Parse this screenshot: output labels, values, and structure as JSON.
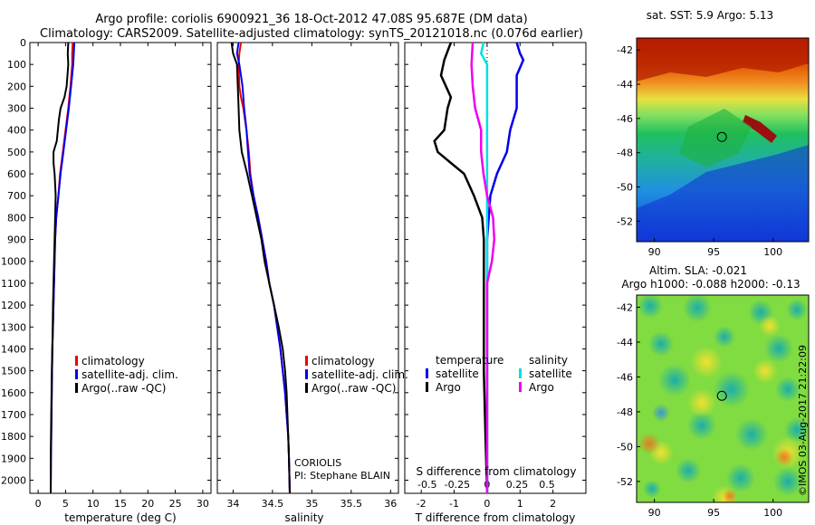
{
  "header": {
    "title_line1": "Argo profile: coriolis 6900921_36 18-Oct-2012 47.08S 95.687E (DM data)",
    "title_line2": "Climatology: CARS2009. Satellite-adjusted climatology: synTS_20121018.nc (0.076d earlier)"
  },
  "side_label": "©IMOS 03-Aug-2017 21:22:09",
  "colors": {
    "clim": "#ee0000",
    "sat": "#0000ee",
    "argo": "#000000",
    "sal_sat": "#00e0e0",
    "sal_argo": "#ee00ee"
  },
  "chart_data": [
    {
      "type": "line",
      "name": "temperature-profile",
      "xlabel": "temperature (deg C)",
      "xlim": [
        -1.5,
        31.5
      ],
      "ylim": [
        2060,
        0
      ],
      "xticks": [
        0,
        5,
        10,
        15,
        20,
        25,
        30
      ],
      "yticks": [
        0,
        100,
        200,
        300,
        400,
        500,
        600,
        700,
        800,
        900,
        1000,
        1100,
        1200,
        1300,
        1400,
        1500,
        1600,
        1700,
        1800,
        1900,
        2000
      ],
      "legend": [
        "climatology",
        "satellite-adj. clim.",
        "Argo(..raw -QC)"
      ],
      "series": [
        {
          "name": "climatology",
          "points": [
            [
              6.3,
              0
            ],
            [
              6.2,
              50
            ],
            [
              6.2,
              100
            ],
            [
              5.9,
              200
            ],
            [
              5.5,
              300
            ],
            [
              5.0,
              400
            ],
            [
              4.5,
              500
            ],
            [
              4.0,
              600
            ],
            [
              3.7,
              700
            ],
            [
              3.3,
              800
            ],
            [
              3.1,
              900
            ],
            [
              3.0,
              1000
            ],
            [
              2.9,
              1100
            ],
            [
              2.8,
              1200
            ],
            [
              2.7,
              1300
            ],
            [
              2.6,
              1400
            ],
            [
              2.55,
              1500
            ],
            [
              2.5,
              1600
            ],
            [
              2.45,
              1700
            ],
            [
              2.4,
              1800
            ],
            [
              2.35,
              1900
            ],
            [
              2.3,
              2060
            ]
          ]
        },
        {
          "name": "satellite-adj. clim.",
          "points": [
            [
              6.6,
              0
            ],
            [
              6.5,
              50
            ],
            [
              6.4,
              100
            ],
            [
              6.0,
              200
            ],
            [
              5.6,
              300
            ],
            [
              5.1,
              400
            ],
            [
              4.6,
              500
            ],
            [
              4.1,
              600
            ],
            [
              3.7,
              700
            ],
            [
              3.3,
              800
            ],
            [
              3.1,
              900
            ],
            [
              3.0,
              1000
            ],
            [
              2.9,
              1100
            ],
            [
              2.8,
              1200
            ],
            [
              2.7,
              1300
            ],
            [
              2.6,
              1400
            ],
            [
              2.55,
              1500
            ],
            [
              2.5,
              1600
            ],
            [
              2.45,
              1700
            ],
            [
              2.4,
              1800
            ],
            [
              2.35,
              1900
            ],
            [
              2.3,
              2060
            ]
          ]
        },
        {
          "name": "Argo(..raw -QC)",
          "points": [
            [
              5.5,
              0
            ],
            [
              5.4,
              50
            ],
            [
              5.5,
              100
            ],
            [
              5.2,
              200
            ],
            [
              4.8,
              250
            ],
            [
              4.1,
              300
            ],
            [
              3.8,
              350
            ],
            [
              3.6,
              400
            ],
            [
              3.4,
              450
            ],
            [
              2.8,
              500
            ],
            [
              2.8,
              550
            ],
            [
              3.0,
              600
            ],
            [
              3.1,
              650
            ],
            [
              3.2,
              700
            ],
            [
              3.1,
              800
            ],
            [
              3.0,
              900
            ],
            [
              2.9,
              1000
            ],
            [
              2.8,
              1100
            ],
            [
              2.7,
              1200
            ],
            [
              2.65,
              1300
            ],
            [
              2.6,
              1400
            ],
            [
              2.5,
              1500
            ],
            [
              2.45,
              1600
            ],
            [
              2.4,
              1700
            ],
            [
              2.35,
              1800
            ],
            [
              2.3,
              1900
            ],
            [
              2.3,
              2060
            ]
          ]
        }
      ]
    },
    {
      "type": "line",
      "name": "salinity-profile",
      "xlabel": "salinity",
      "xlim": [
        33.8,
        36.1
      ],
      "ylim": [
        2060,
        0
      ],
      "xticks": [
        34,
        34.5,
        35,
        35.5,
        36
      ],
      "legend": [
        "climatology",
        "satellite-adj. clim.",
        "Argo(..raw -QC)"
      ],
      "annotation": [
        "CORIOLIS",
        "PI: Stephane BLAIN"
      ],
      "series": [
        {
          "name": "climatology",
          "points": [
            [
              34.1,
              0
            ],
            [
              34.08,
              50
            ],
            [
              34.07,
              100
            ],
            [
              34.08,
              200
            ],
            [
              34.1,
              250
            ],
            [
              34.13,
              300
            ],
            [
              34.17,
              400
            ],
            [
              34.2,
              500
            ],
            [
              34.22,
              600
            ],
            [
              34.26,
              700
            ],
            [
              34.32,
              800
            ],
            [
              34.37,
              900
            ],
            [
              34.42,
              1000
            ],
            [
              34.46,
              1100
            ],
            [
              34.52,
              1200
            ],
            [
              34.56,
              1300
            ],
            [
              34.6,
              1400
            ],
            [
              34.63,
              1500
            ],
            [
              34.66,
              1600
            ],
            [
              34.68,
              1700
            ],
            [
              34.7,
              1800
            ],
            [
              34.71,
              1900
            ],
            [
              34.72,
              2060
            ]
          ]
        },
        {
          "name": "satellite-adj. clim.",
          "points": [
            [
              34.07,
              0
            ],
            [
              34.05,
              50
            ],
            [
              34.08,
              100
            ],
            [
              34.1,
              150
            ],
            [
              34.12,
              200
            ],
            [
              34.14,
              300
            ],
            [
              34.17,
              400
            ],
            [
              34.19,
              500
            ],
            [
              34.21,
              600
            ],
            [
              34.26,
              700
            ],
            [
              34.32,
              800
            ],
            [
              34.37,
              900
            ],
            [
              34.42,
              1000
            ],
            [
              34.46,
              1100
            ],
            [
              34.52,
              1200
            ],
            [
              34.56,
              1300
            ],
            [
              34.6,
              1400
            ],
            [
              34.63,
              1500
            ],
            [
              34.66,
              1600
            ],
            [
              34.68,
              1700
            ],
            [
              34.7,
              1800
            ],
            [
              34.71,
              1900
            ],
            [
              34.72,
              2060
            ]
          ]
        },
        {
          "name": "Argo(..raw -QC)",
          "points": [
            [
              33.98,
              0
            ],
            [
              34.0,
              50
            ],
            [
              34.05,
              100
            ],
            [
              34.06,
              200
            ],
            [
              34.07,
              300
            ],
            [
              34.08,
              400
            ],
            [
              34.11,
              500
            ],
            [
              34.18,
              600
            ],
            [
              34.24,
              700
            ],
            [
              34.3,
              800
            ],
            [
              34.36,
              900
            ],
            [
              34.4,
              1000
            ],
            [
              34.46,
              1100
            ],
            [
              34.52,
              1200
            ],
            [
              34.58,
              1300
            ],
            [
              34.63,
              1400
            ],
            [
              34.66,
              1500
            ],
            [
              34.68,
              1600
            ],
            [
              34.69,
              1700
            ],
            [
              34.7,
              1800
            ],
            [
              34.71,
              1900
            ],
            [
              34.72,
              2060
            ]
          ]
        }
      ]
    },
    {
      "type": "line",
      "name": "difference-profile",
      "xlabel": "T difference from climatology",
      "xlabel_top": "S difference from climatology",
      "xlim_t": [
        -2.5,
        3.0
      ],
      "xticks_t": [
        -2,
        -1,
        0,
        1,
        2
      ],
      "xlim_s": [
        -0.6875,
        0.825
      ],
      "xticks_s": [
        -0.5,
        -0.25,
        0,
        0.25,
        0.5
      ],
      "xticklabels_s": [
        "-0.5",
        "-0.25",
        "0",
        "0.25",
        "0.5"
      ],
      "ylim": [
        2060,
        0
      ],
      "legend_temperature": {
        "title": "temperature",
        "items": [
          "satellite",
          "Argo"
        ]
      },
      "legend_salinity": {
        "title": "salinity",
        "items": [
          "satellite",
          "Argo"
        ]
      },
      "series": [
        {
          "name": "temperature satellite",
          "axis": "t",
          "points": [
            [
              0.9,
              0
            ],
            [
              1.0,
              50
            ],
            [
              1.1,
              80
            ],
            [
              0.9,
              150
            ],
            [
              0.9,
              250
            ],
            [
              0.9,
              300
            ],
            [
              0.7,
              400
            ],
            [
              0.6,
              500
            ],
            [
              0.3,
              600
            ],
            [
              0.1,
              700
            ],
            [
              0.05,
              800
            ],
            [
              0,
              900
            ],
            [
              0,
              1100
            ],
            [
              0,
              1500
            ],
            [
              0,
              2060
            ]
          ]
        },
        {
          "name": "temperature Argo",
          "axis": "t",
          "points": [
            [
              -1.1,
              0
            ],
            [
              -1.3,
              80
            ],
            [
              -1.4,
              150
            ],
            [
              -1.1,
              250
            ],
            [
              -1.2,
              300
            ],
            [
              -1.3,
              400
            ],
            [
              -1.6,
              450
            ],
            [
              -1.5,
              500
            ],
            [
              -1.1,
              550
            ],
            [
              -0.7,
              600
            ],
            [
              -0.4,
              700
            ],
            [
              -0.15,
              800
            ],
            [
              -0.1,
              900
            ],
            [
              -0.1,
              1100
            ],
            [
              -0.1,
              1500
            ],
            [
              -0.05,
              1800
            ],
            [
              0,
              2060
            ]
          ]
        },
        {
          "name": "salinity satellite",
          "axis": "s",
          "points": [
            [
              -0.03,
              0
            ],
            [
              -0.05,
              50
            ],
            [
              0.0,
              100
            ],
            [
              0.0,
              200
            ],
            [
              0.0,
              400
            ],
            [
              0.0,
              500
            ],
            [
              0.0,
              700
            ],
            [
              0.0,
              800
            ],
            [
              0.0,
              1000
            ],
            [
              0.0,
              1500
            ],
            [
              0.0,
              2060
            ]
          ]
        },
        {
          "name": "salinity Argo",
          "axis": "s",
          "points": [
            [
              -0.12,
              0
            ],
            [
              -0.13,
              100
            ],
            [
              -0.12,
              200
            ],
            [
              -0.1,
              300
            ],
            [
              -0.05,
              400
            ],
            [
              -0.05,
              500
            ],
            [
              -0.03,
              600
            ],
            [
              0.0,
              700
            ],
            [
              0.05,
              800
            ],
            [
              0.06,
              900
            ],
            [
              0.04,
              1000
            ],
            [
              0.0,
              1100
            ],
            [
              0.0,
              1200
            ],
            [
              0.0,
              1400
            ],
            [
              0.0,
              2060
            ]
          ]
        }
      ]
    },
    {
      "type": "heatmap",
      "name": "sst-map",
      "title": "sat. SST: 5.9  Argo: 5.13",
      "xlim": [
        88.5,
        103
      ],
      "ylim": [
        -53.2,
        -41.3
      ],
      "xticks": [
        90,
        95,
        100
      ],
      "yticks": [
        -42,
        -44,
        -46,
        -48,
        -50,
        -52
      ],
      "marker": [
        95.687,
        -47.08
      ]
    },
    {
      "type": "heatmap",
      "name": "sla-map",
      "title_line1": "Altim. SLA: -0.021",
      "title_line2": "Argo h1000: -0.088 h2000: -0.13",
      "xlim": [
        88.5,
        103
      ],
      "ylim": [
        -53.2,
        -41.3
      ],
      "xticks": [
        90,
        95,
        100
      ],
      "yticks": [
        -42,
        -44,
        -46,
        -48,
        -50,
        -52
      ],
      "marker": [
        95.687,
        -47.08
      ]
    }
  ]
}
